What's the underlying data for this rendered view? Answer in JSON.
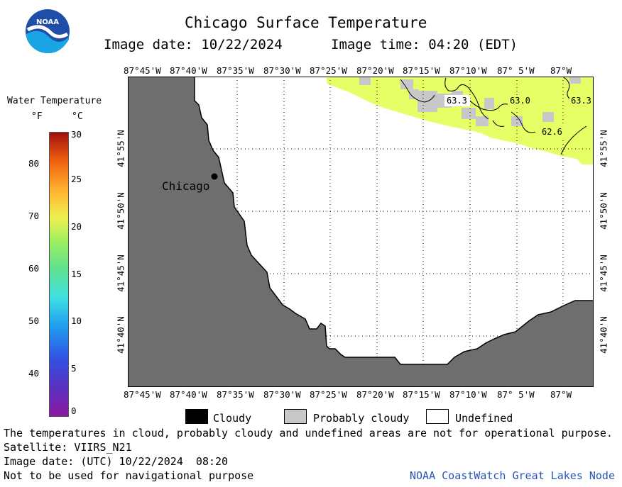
{
  "header": {
    "title": "Chicago Surface Temperature",
    "image_date": "Image date: 10/22/2024",
    "image_time": "Image time: 04:20 (EDT)"
  },
  "logo": {
    "text": "NOAA"
  },
  "colorbar": {
    "title": "Water Temperature",
    "unit_f": "°F",
    "unit_c": "°C",
    "f_ticks": [
      "80",
      "70",
      "60",
      "50",
      "40"
    ],
    "c_ticks": [
      "30",
      "25",
      "20",
      "15",
      "10",
      "5",
      "0"
    ]
  },
  "axes": {
    "lon_ticks": [
      "87°45'W",
      "87°40'W",
      "87°35'W",
      "87°30'W",
      "87°25'W",
      "87°20'W",
      "87°15'W",
      "87°10'W",
      "87° 5'W",
      "87°W"
    ],
    "lat_ticks": [
      "41°55'N",
      "41°50'N",
      "41°45'N",
      "41°40'N"
    ]
  },
  "map": {
    "city_label": "Chicago",
    "contour_labels": [
      "63.3",
      "63.0",
      "63.3",
      "62.6"
    ],
    "colors": {
      "land": "#6e6e6e",
      "warm_water": "#e6ff66",
      "probably_cloudy": "#c8c8c8",
      "undefined": "#ffffff"
    }
  },
  "legend": {
    "cloudy": "Cloudy",
    "probably_cloudy": "Probably cloudy",
    "undefined": "Undefined"
  },
  "footer": {
    "disclaimer": "The temperatures in cloud, probably cloudy and undefined areas are not for operational purpose.",
    "satellite": "Satellite: VIIRS_N21",
    "utc_date": "Image date: (UTC) 10/22/2024  08:20",
    "nav_warning": "Not to be used for navigational purpose",
    "credit": "NOAA CoastWatch Great Lakes Node"
  }
}
